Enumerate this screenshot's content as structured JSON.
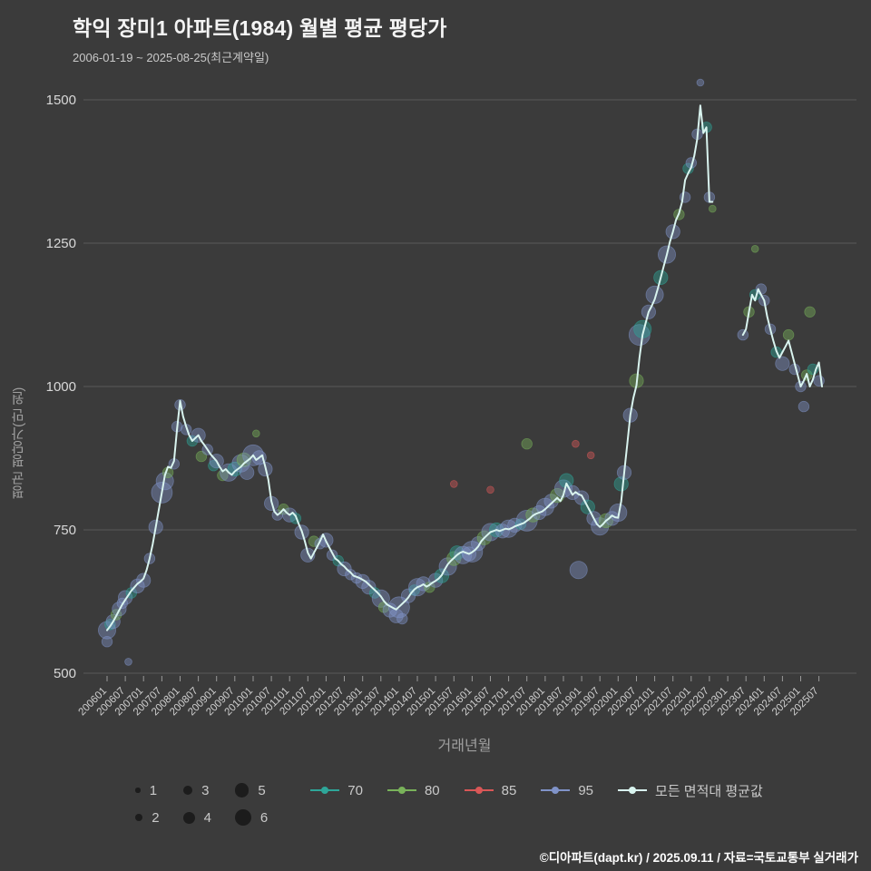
{
  "page": {
    "footer": "©디아파트(dapt.kr) / 2025.09.11 / 자료=국토교통부 실거래가"
  },
  "chart_data": {
    "type": "scatter",
    "title": "학익 장미1 아파트(1984) 월별 평균 평당가",
    "subtitle": "2006-01-19 ~ 2025-08-25(최근계약일)",
    "xlabel": "거래년월",
    "ylabel": "평균 평당가(만 원)",
    "ylim": [
      470,
      1560
    ],
    "yticks": [
      500,
      750,
      1000,
      1250,
      1500
    ],
    "grid": "horizontal",
    "legend_position": "bottom",
    "x_start": "200601",
    "x_end": "202508",
    "xtick_labels": [
      "200601",
      "200607",
      "200701",
      "200707",
      "200801",
      "200807",
      "200901",
      "200907",
      "201001",
      "201007",
      "201101",
      "201107",
      "201201",
      "201207",
      "201301",
      "201307",
      "201401",
      "201407",
      "201501",
      "201507",
      "201601",
      "201607",
      "201701",
      "201707",
      "201801",
      "201807",
      "201901",
      "201907",
      "202001",
      "202007",
      "202101",
      "202107",
      "202201",
      "202207",
      "202301",
      "202307",
      "202401",
      "202407",
      "202501",
      "202507"
    ],
    "bubble_size_legend": [
      1,
      2,
      3,
      4,
      5,
      6
    ],
    "series_legend": [
      {
        "name": "70",
        "color": "#2ea699"
      },
      {
        "name": "80",
        "color": "#79b25a"
      },
      {
        "name": "85",
        "color": "#d95757"
      },
      {
        "name": "95",
        "color": "#8093c8"
      },
      {
        "name": "모든 면적대 평균값",
        "color": "#d9f4ef"
      }
    ],
    "line": {
      "name": "모든 면적대 평균값",
      "color": "#d9f4ef",
      "start": "200601",
      "monthly_values": [
        575,
        582,
        590,
        600,
        610,
        620,
        628,
        636,
        644,
        650,
        656,
        660,
        665,
        680,
        700,
        725,
        755,
        785,
        815,
        845,
        860,
        858,
        870,
        925,
        975,
        948,
        930,
        915,
        905,
        910,
        915,
        905,
        898,
        890,
        882,
        876,
        870,
        860,
        852,
        856,
        850,
        846,
        852,
        856,
        860,
        866,
        870,
        874,
        880,
        872,
        876,
        880,
        860,
        838,
        800,
        782,
        776,
        780,
        786,
        780,
        776,
        780,
        774,
        760,
        748,
        730,
        710,
        700,
        710,
        720,
        730,
        742,
        730,
        720,
        710,
        700,
        696,
        690,
        686,
        680,
        676,
        670,
        668,
        666,
        663,
        660,
        655,
        650,
        645,
        640,
        634,
        626,
        620,
        617,
        614,
        611,
        616,
        621,
        626,
        632,
        640,
        646,
        650,
        652,
        655,
        651,
        654,
        658,
        661,
        665,
        671,
        681,
        690,
        696,
        701,
        706,
        710,
        712,
        710,
        708,
        711,
        715,
        721,
        730,
        736,
        741,
        746,
        748,
        750,
        748,
        750,
        752,
        751,
        753,
        756,
        758,
        760,
        762,
        766,
        770,
        775,
        778,
        780,
        782,
        786,
        791,
        796,
        801,
        806,
        800,
        811,
        831,
        821,
        811,
        816,
        812,
        810,
        800,
        790,
        780,
        770,
        760,
        755,
        760,
        766,
        770,
        775,
        772,
        771,
        800,
        850,
        900,
        950,
        980,
        1002,
        1050,
        1090,
        1110,
        1130,
        1140,
        1152,
        1170,
        1190,
        1210,
        1230,
        1252,
        1270,
        1290,
        1302,
        1322,
        1360,
        1372,
        1382,
        1402,
        1432,
        1490,
        1442,
        1452,
        1322,
        1322,
        null,
        null,
        null,
        null,
        null,
        null,
        null,
        null,
        null,
        1090,
        1100,
        1130,
        1160,
        1150,
        1170,
        1160,
        1150,
        1122,
        1100,
        1080,
        1062,
        1050,
        1060,
        1070,
        1080,
        1060,
        1040,
        1020,
        1000,
        1010,
        1022,
        1000,
        1012,
        1030,
        1042,
        1000
      ]
    },
    "scatter": [
      [
        "200601",
        "95",
        575,
        4
      ],
      [
        "200601",
        "95",
        555,
        2
      ],
      [
        "200602",
        "70",
        585,
        2
      ],
      [
        "200603",
        "95",
        590,
        3
      ],
      [
        "200604",
        "80",
        602,
        2
      ],
      [
        "200605",
        "95",
        612,
        3
      ],
      [
        "200606",
        "95",
        622,
        2
      ],
      [
        "200607",
        "95",
        632,
        3
      ],
      [
        "200608",
        "95",
        520,
        1
      ],
      [
        "200609",
        "70",
        640,
        2
      ],
      [
        "200611",
        "95",
        652,
        3
      ],
      [
        "200701",
        "95",
        662,
        3
      ],
      [
        "200703",
        "95",
        700,
        2
      ],
      [
        "200705",
        "95",
        755,
        3
      ],
      [
        "200707",
        "95",
        815,
        5
      ],
      [
        "200708",
        "95",
        835,
        4
      ],
      [
        "200709",
        "80",
        850,
        2
      ],
      [
        "200711",
        "95",
        865,
        2
      ],
      [
        "200712",
        "95",
        930,
        2
      ],
      [
        "200801",
        "95",
        968,
        2
      ],
      [
        "200803",
        "95",
        925,
        2
      ],
      [
        "200805",
        "70",
        905,
        2
      ],
      [
        "200807",
        "95",
        915,
        3
      ],
      [
        "200808",
        "80",
        878,
        2
      ],
      [
        "200810",
        "95",
        890,
        2
      ],
      [
        "200812",
        "70",
        862,
        2
      ],
      [
        "200901",
        "95",
        870,
        3
      ],
      [
        "200903",
        "80",
        845,
        2
      ],
      [
        "200905",
        "95",
        850,
        4
      ],
      [
        "200907",
        "70",
        856,
        3
      ],
      [
        "200909",
        "95",
        866,
        4
      ],
      [
        "200910",
        "80",
        872,
        3
      ],
      [
        "200911",
        "95",
        850,
        3
      ],
      [
        "201001",
        "95",
        880,
        5
      ],
      [
        "201002",
        "80",
        918,
        1
      ],
      [
        "201003",
        "95",
        876,
        3
      ],
      [
        "201005",
        "95",
        856,
        3
      ],
      [
        "201007",
        "95",
        796,
        3
      ],
      [
        "201009",
        "95",
        776,
        2
      ],
      [
        "201011",
        "80",
        786,
        2
      ],
      [
        "201101",
        "95",
        776,
        3
      ],
      [
        "201103",
        "70",
        770,
        2
      ],
      [
        "201105",
        "95",
        746,
        3
      ],
      [
        "201107",
        "95",
        706,
        3
      ],
      [
        "201109",
        "80",
        730,
        2
      ],
      [
        "201111",
        "95",
        726,
        2
      ],
      [
        "201201",
        "95",
        732,
        3
      ],
      [
        "201203",
        "95",
        706,
        2
      ],
      [
        "201205",
        "70",
        696,
        2
      ],
      [
        "201207",
        "95",
        682,
        3
      ],
      [
        "201209",
        "95",
        672,
        2
      ],
      [
        "201211",
        "95",
        666,
        2
      ],
      [
        "201301",
        "95",
        660,
        3
      ],
      [
        "201303",
        "95",
        650,
        3
      ],
      [
        "201305",
        "70",
        640,
        2
      ],
      [
        "201307",
        "95",
        630,
        4
      ],
      [
        "201308",
        "80",
        615,
        2
      ],
      [
        "201310",
        "95",
        610,
        3
      ],
      [
        "201312",
        "95",
        600,
        3
      ],
      [
        "201401",
        "95",
        615,
        5
      ],
      [
        "201402",
        "95",
        595,
        2
      ],
      [
        "201404",
        "95",
        635,
        3
      ],
      [
        "201406",
        "70",
        645,
        2
      ],
      [
        "201407",
        "95",
        650,
        4
      ],
      [
        "201409",
        "95",
        656,
        3
      ],
      [
        "201411",
        "80",
        650,
        2
      ],
      [
        "201501",
        "95",
        662,
        3
      ],
      [
        "201503",
        "70",
        670,
        3
      ],
      [
        "201505",
        "95",
        686,
        4
      ],
      [
        "201507",
        "85",
        830,
        1
      ],
      [
        "201507",
        "80",
        700,
        3
      ],
      [
        "201508",
        "70",
        710,
        3
      ],
      [
        "201510",
        "95",
        706,
        4
      ],
      [
        "201512",
        "95",
        708,
        3
      ],
      [
        "201601",
        "95",
        712,
        5
      ],
      [
        "201603",
        "95",
        726,
        3
      ],
      [
        "201605",
        "80",
        736,
        3
      ],
      [
        "201607",
        "85",
        820,
        1
      ],
      [
        "201607",
        "95",
        746,
        4
      ],
      [
        "201609",
        "70",
        750,
        3
      ],
      [
        "201611",
        "95",
        748,
        3
      ],
      [
        "201701",
        "95",
        752,
        4
      ],
      [
        "201703",
        "95",
        758,
        3
      ],
      [
        "201705",
        "70",
        760,
        2
      ],
      [
        "201707",
        "80",
        900,
        2
      ],
      [
        "201707",
        "95",
        766,
        5
      ],
      [
        "201709",
        "80",
        776,
        3
      ],
      [
        "201711",
        "95",
        780,
        3
      ],
      [
        "201801",
        "95",
        790,
        4
      ],
      [
        "201803",
        "95",
        800,
        3
      ],
      [
        "201805",
        "80",
        810,
        3
      ],
      [
        "201807",
        "95",
        822,
        4
      ],
      [
        "201808",
        "70",
        836,
        3
      ],
      [
        "201810",
        "95",
        815,
        3
      ],
      [
        "201811",
        "85",
        900,
        1
      ],
      [
        "201812",
        "95",
        680,
        4
      ],
      [
        "201901",
        "95",
        806,
        3
      ],
      [
        "201903",
        "70",
        790,
        3
      ],
      [
        "201904",
        "85",
        880,
        1
      ],
      [
        "201905",
        "95",
        770,
        3
      ],
      [
        "201907",
        "95",
        756,
        4
      ],
      [
        "201909",
        "80",
        766,
        3
      ],
      [
        "201911",
        "95",
        770,
        3
      ],
      [
        "202001",
        "95",
        780,
        4
      ],
      [
        "202002",
        "70",
        830,
        3
      ],
      [
        "202003",
        "95",
        850,
        3
      ],
      [
        "202005",
        "95",
        950,
        3
      ],
      [
        "202007",
        "80",
        1010,
        3
      ],
      [
        "202008",
        "95",
        1090,
        5
      ],
      [
        "202009",
        "70",
        1100,
        4
      ],
      [
        "202011",
        "95",
        1130,
        3
      ],
      [
        "202101",
        "95",
        1160,
        4
      ],
      [
        "202103",
        "70",
        1190,
        3
      ],
      [
        "202105",
        "95",
        1230,
        4
      ],
      [
        "202107",
        "95",
        1270,
        3
      ],
      [
        "202109",
        "80",
        1300,
        2
      ],
      [
        "202111",
        "95",
        1330,
        2
      ],
      [
        "202112",
        "70",
        1380,
        2
      ],
      [
        "202201",
        "95",
        1390,
        2
      ],
      [
        "202203",
        "95",
        1440,
        2
      ],
      [
        "202204",
        "95",
        1530,
        1
      ],
      [
        "202206",
        "70",
        1452,
        2
      ],
      [
        "202207",
        "95",
        1330,
        2
      ],
      [
        "202208",
        "80",
        1310,
        1
      ],
      [
        "202306",
        "95",
        1090,
        2
      ],
      [
        "202308",
        "80",
        1130,
        2
      ],
      [
        "202310",
        "80",
        1240,
        1
      ],
      [
        "202310",
        "70",
        1160,
        2
      ],
      [
        "202312",
        "95",
        1170,
        2
      ],
      [
        "202401",
        "95",
        1150,
        2
      ],
      [
        "202403",
        "95",
        1100,
        2
      ],
      [
        "202405",
        "70",
        1060,
        2
      ],
      [
        "202407",
        "95",
        1040,
        3
      ],
      [
        "202409",
        "80",
        1090,
        2
      ],
      [
        "202411",
        "95",
        1030,
        2
      ],
      [
        "202501",
        "95",
        1000,
        2
      ],
      [
        "202502",
        "95",
        965,
        2
      ],
      [
        "202503",
        "80",
        1020,
        2
      ],
      [
        "202504",
        "80",
        1130,
        2
      ],
      [
        "202505",
        "70",
        1030,
        2
      ],
      [
        "202507",
        "95",
        1010,
        2
      ]
    ]
  }
}
